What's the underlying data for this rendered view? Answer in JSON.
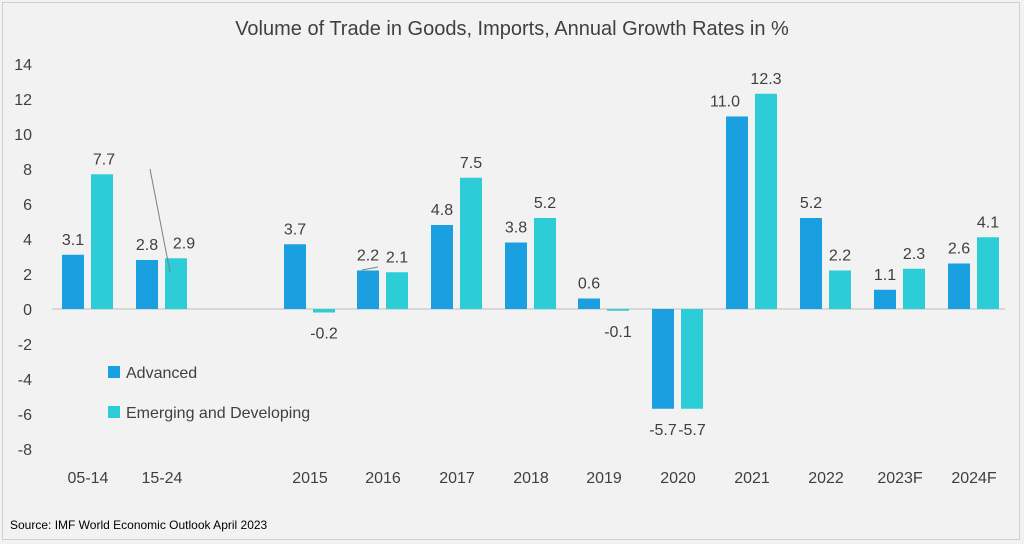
{
  "chart_data": {
    "type": "bar",
    "title": "Volume of Trade in Goods,  Imports, Annual Growth Rates in %",
    "categories": [
      "05-14",
      "15-24",
      "",
      "2015",
      "2016",
      "2017",
      "2018",
      "2019",
      "2020",
      "2021",
      "2022",
      "2023F",
      "2024F"
    ],
    "series": [
      {
        "name": "Advanced",
        "color": "#1a9fe0",
        "values": [
          3.1,
          2.8,
          null,
          3.7,
          2.2,
          4.8,
          3.8,
          0.6,
          -5.7,
          11.0,
          5.2,
          1.1,
          2.6
        ]
      },
      {
        "name": "Emerging and Developing",
        "color": "#2ccdd6",
        "values": [
          7.7,
          2.9,
          null,
          -0.2,
          2.1,
          7.5,
          5.2,
          -0.1,
          -5.7,
          12.3,
          2.2,
          2.3,
          4.1
        ]
      }
    ],
    "ylim": [
      -8,
      14
    ],
    "yticks": [
      -8,
      -6,
      -4,
      -2,
      0,
      2,
      4,
      6,
      8,
      10,
      12,
      14
    ],
    "grid": false,
    "legend_position": "left",
    "source": "Source: IMF World Economic Outlook April 2023"
  }
}
